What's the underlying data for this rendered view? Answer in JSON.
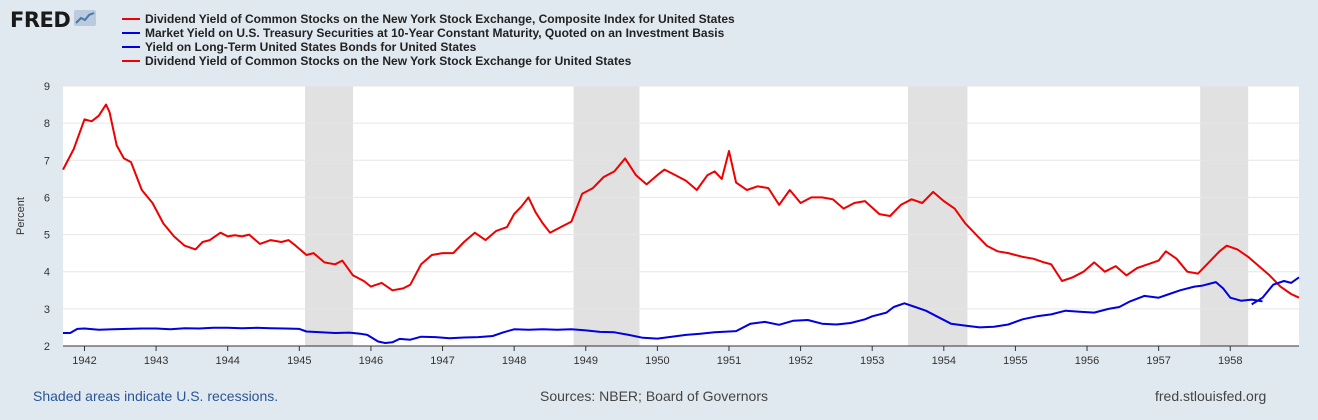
{
  "header": {
    "logo_text": "FRED",
    "logo_icon": "line-chart-icon"
  },
  "legend": {
    "items": [
      {
        "label": "Dividend Yield of Common Stocks on the New York Stock Exchange, Composite Index for United States",
        "color": "#ef0000"
      },
      {
        "label": "Market Yield on U.S. Treasury Securities at 10-Year Constant Maturity, Quoted on an Investment Basis",
        "color": "#0000e0"
      },
      {
        "label": "Yield on Long-Term United States Bonds for United States",
        "color": "#0000e0"
      },
      {
        "label": "Dividend Yield of Common Stocks on the New York Stock Exchange for United States",
        "color": "#ef0000"
      }
    ]
  },
  "footer": {
    "recession_note": "Shaded areas indicate U.S. recessions.",
    "sources": "Sources: NBER; Board of Governors",
    "site": "fred.stlouisfed.org"
  },
  "chart_data": {
    "type": "line",
    "ylabel": "Percent",
    "ylim": [
      2,
      9
    ],
    "xlim": [
      1941.7,
      1958.96
    ],
    "yticks": [
      2,
      3,
      4,
      5,
      6,
      7,
      8,
      9
    ],
    "xticks": [
      "1942",
      "1943",
      "1944",
      "1945",
      "1946",
      "1947",
      "1948",
      "1949",
      "1950",
      "1951",
      "1952",
      "1953",
      "1954",
      "1955",
      "1956",
      "1957",
      "1958"
    ],
    "grid": true,
    "recessions": [
      [
        1945.08,
        1945.75
      ],
      [
        1948.83,
        1949.75
      ],
      [
        1953.5,
        1954.33
      ],
      [
        1957.58,
        1958.25
      ]
    ],
    "series": [
      {
        "name": "Dividend Yield of Common Stocks on the New York Stock Exchange for United States",
        "color": "#ef0000",
        "x": [
          1941.7,
          1941.85,
          1942.0,
          1942.1,
          1942.2,
          1942.3,
          1942.35,
          1942.45,
          1942.55,
          1942.65,
          1942.8,
          1942.95,
          1943.1,
          1943.25,
          1943.4,
          1943.55,
          1943.65,
          1943.75,
          1943.9,
          1944.0,
          1944.1,
          1944.2,
          1944.3,
          1944.45,
          1944.6,
          1944.75,
          1944.85,
          1944.95,
          1945.1,
          1945.2,
          1945.35,
          1945.5,
          1945.6,
          1945.75,
          1945.9,
          1946.0,
          1946.15,
          1946.3,
          1946.45,
          1946.55,
          1946.7,
          1946.85,
          1947.0,
          1947.15,
          1947.3,
          1947.45,
          1947.6,
          1947.75,
          1947.9,
          1948.0,
          1948.1,
          1948.2,
          1948.3,
          1948.4,
          1948.5,
          1948.65,
          1948.8,
          1948.95,
          1949.1,
          1949.25,
          1949.4,
          1949.55,
          1949.7,
          1949.85,
          1950.0,
          1950.1,
          1950.25,
          1950.4,
          1950.55,
          1950.7,
          1950.8,
          1950.9,
          1951.0,
          1951.1,
          1951.25,
          1951.4,
          1951.55,
          1951.7,
          1951.85,
          1952.0,
          1952.15,
          1952.3,
          1952.45,
          1952.6,
          1952.75,
          1952.9,
          1953.1,
          1953.25,
          1953.4,
          1953.55,
          1953.7,
          1953.85,
          1954.0,
          1954.15,
          1954.3,
          1954.45,
          1954.6,
          1954.75,
          1954.9,
          1955.1,
          1955.25,
          1955.4,
          1955.5,
          1955.65,
          1955.8,
          1955.95,
          1956.1,
          1956.25,
          1956.4,
          1956.55,
          1956.7,
          1956.85,
          1957.0,
          1957.1,
          1957.25,
          1957.4,
          1957.55,
          1957.7,
          1957.85,
          1957.95,
          1958.1,
          1958.25,
          1958.4,
          1958.55,
          1958.7,
          1958.85,
          1958.96
        ],
        "y": [
          6.75,
          7.3,
          8.1,
          8.05,
          8.2,
          8.5,
          8.3,
          7.4,
          7.05,
          6.95,
          6.2,
          5.85,
          5.3,
          4.95,
          4.7,
          4.6,
          4.8,
          4.85,
          5.05,
          4.95,
          4.98,
          4.95,
          5.0,
          4.75,
          4.85,
          4.8,
          4.85,
          4.7,
          4.45,
          4.5,
          4.25,
          4.2,
          4.3,
          3.9,
          3.75,
          3.6,
          3.7,
          3.5,
          3.55,
          3.65,
          4.2,
          4.45,
          4.5,
          4.5,
          4.8,
          5.05,
          4.85,
          5.1,
          5.2,
          5.55,
          5.75,
          6.0,
          5.6,
          5.3,
          5.05,
          5.2,
          5.35,
          6.1,
          6.25,
          6.55,
          6.7,
          7.05,
          6.6,
          6.35,
          6.6,
          6.75,
          6.6,
          6.45,
          6.2,
          6.6,
          6.7,
          6.5,
          7.25,
          6.4,
          6.2,
          6.3,
          6.25,
          5.8,
          6.2,
          5.85,
          6.0,
          6.0,
          5.95,
          5.7,
          5.85,
          5.9,
          5.55,
          5.5,
          5.8,
          5.95,
          5.85,
          6.15,
          5.9,
          5.7,
          5.3,
          5.0,
          4.7,
          4.55,
          4.5,
          4.4,
          4.35,
          4.25,
          4.2,
          3.75,
          3.85,
          4.0,
          4.25,
          4.0,
          4.15,
          3.9,
          4.1,
          4.2,
          4.3,
          4.55,
          4.35,
          4.0,
          3.95,
          4.25,
          4.55,
          4.7,
          4.6,
          4.4,
          4.15,
          3.9,
          3.6,
          3.4,
          3.3
        ]
      },
      {
        "name": "Yield on Long-Term United States Bonds for United States",
        "color": "#0000e0",
        "x": [
          1941.7,
          1941.8,
          1941.9,
          1942.0,
          1942.2,
          1942.4,
          1942.6,
          1942.8,
          1943.0,
          1943.2,
          1943.4,
          1943.6,
          1943.8,
          1944.0,
          1944.2,
          1944.4,
          1944.6,
          1944.8,
          1945.0,
          1945.1,
          1945.3,
          1945.5,
          1945.7,
          1945.85,
          1945.95,
          1946.1,
          1946.2,
          1946.3,
          1946.4,
          1946.55,
          1946.7,
          1946.9,
          1947.1,
          1947.3,
          1947.5,
          1947.7,
          1947.85,
          1948.0,
          1948.2,
          1948.4,
          1948.6,
          1948.8,
          1949.0,
          1949.2,
          1949.4,
          1949.6,
          1949.8,
          1950.0,
          1950.2,
          1950.4,
          1950.6,
          1950.8,
          1951.0,
          1951.1,
          1951.3,
          1951.5,
          1951.7,
          1951.9,
          1952.1,
          1952.3,
          1952.5,
          1952.7,
          1952.9,
          1953.0,
          1953.2,
          1953.3,
          1953.45,
          1953.6,
          1953.75,
          1953.9,
          1954.1,
          1954.3,
          1954.5,
          1954.7,
          1954.9,
          1955.1,
          1955.3,
          1955.5,
          1955.7,
          1955.9,
          1956.1,
          1956.3,
          1956.45,
          1956.6,
          1956.8,
          1957.0,
          1957.15,
          1957.3,
          1957.5,
          1957.6,
          1957.8,
          1957.9,
          1958.0,
          1958.15,
          1958.3,
          1958.45
        ],
        "y": [
          2.35,
          2.35,
          2.46,
          2.47,
          2.44,
          2.45,
          2.46,
          2.47,
          2.47,
          2.45,
          2.48,
          2.47,
          2.49,
          2.49,
          2.48,
          2.49,
          2.48,
          2.47,
          2.46,
          2.39,
          2.37,
          2.35,
          2.36,
          2.33,
          2.3,
          2.12,
          2.08,
          2.1,
          2.19,
          2.17,
          2.25,
          2.24,
          2.21,
          2.23,
          2.24,
          2.27,
          2.37,
          2.45,
          2.44,
          2.45,
          2.44,
          2.45,
          2.42,
          2.38,
          2.37,
          2.3,
          2.22,
          2.2,
          2.25,
          2.3,
          2.33,
          2.37,
          2.39,
          2.4,
          2.6,
          2.65,
          2.57,
          2.68,
          2.7,
          2.6,
          2.58,
          2.62,
          2.72,
          2.8,
          2.9,
          3.05,
          3.15,
          3.05,
          2.95,
          2.8,
          2.6,
          2.55,
          2.5,
          2.52,
          2.58,
          2.72,
          2.8,
          2.85,
          2.95,
          2.92,
          2.9,
          3.0,
          3.05,
          3.2,
          3.35,
          3.3,
          3.4,
          3.5,
          3.6,
          3.62,
          3.72,
          3.55,
          3.3,
          3.22,
          3.25,
          3.2
        ]
      },
      {
        "name": "Market Yield on U.S. Treasury Securities at 10-Year Constant Maturity, Quoted on an Investment Basis",
        "color": "#0000e0",
        "x": [
          1958.3,
          1958.45,
          1958.6,
          1958.75,
          1958.85,
          1958.96
        ],
        "y": [
          3.12,
          3.3,
          3.65,
          3.75,
          3.7,
          3.85
        ]
      }
    ]
  }
}
